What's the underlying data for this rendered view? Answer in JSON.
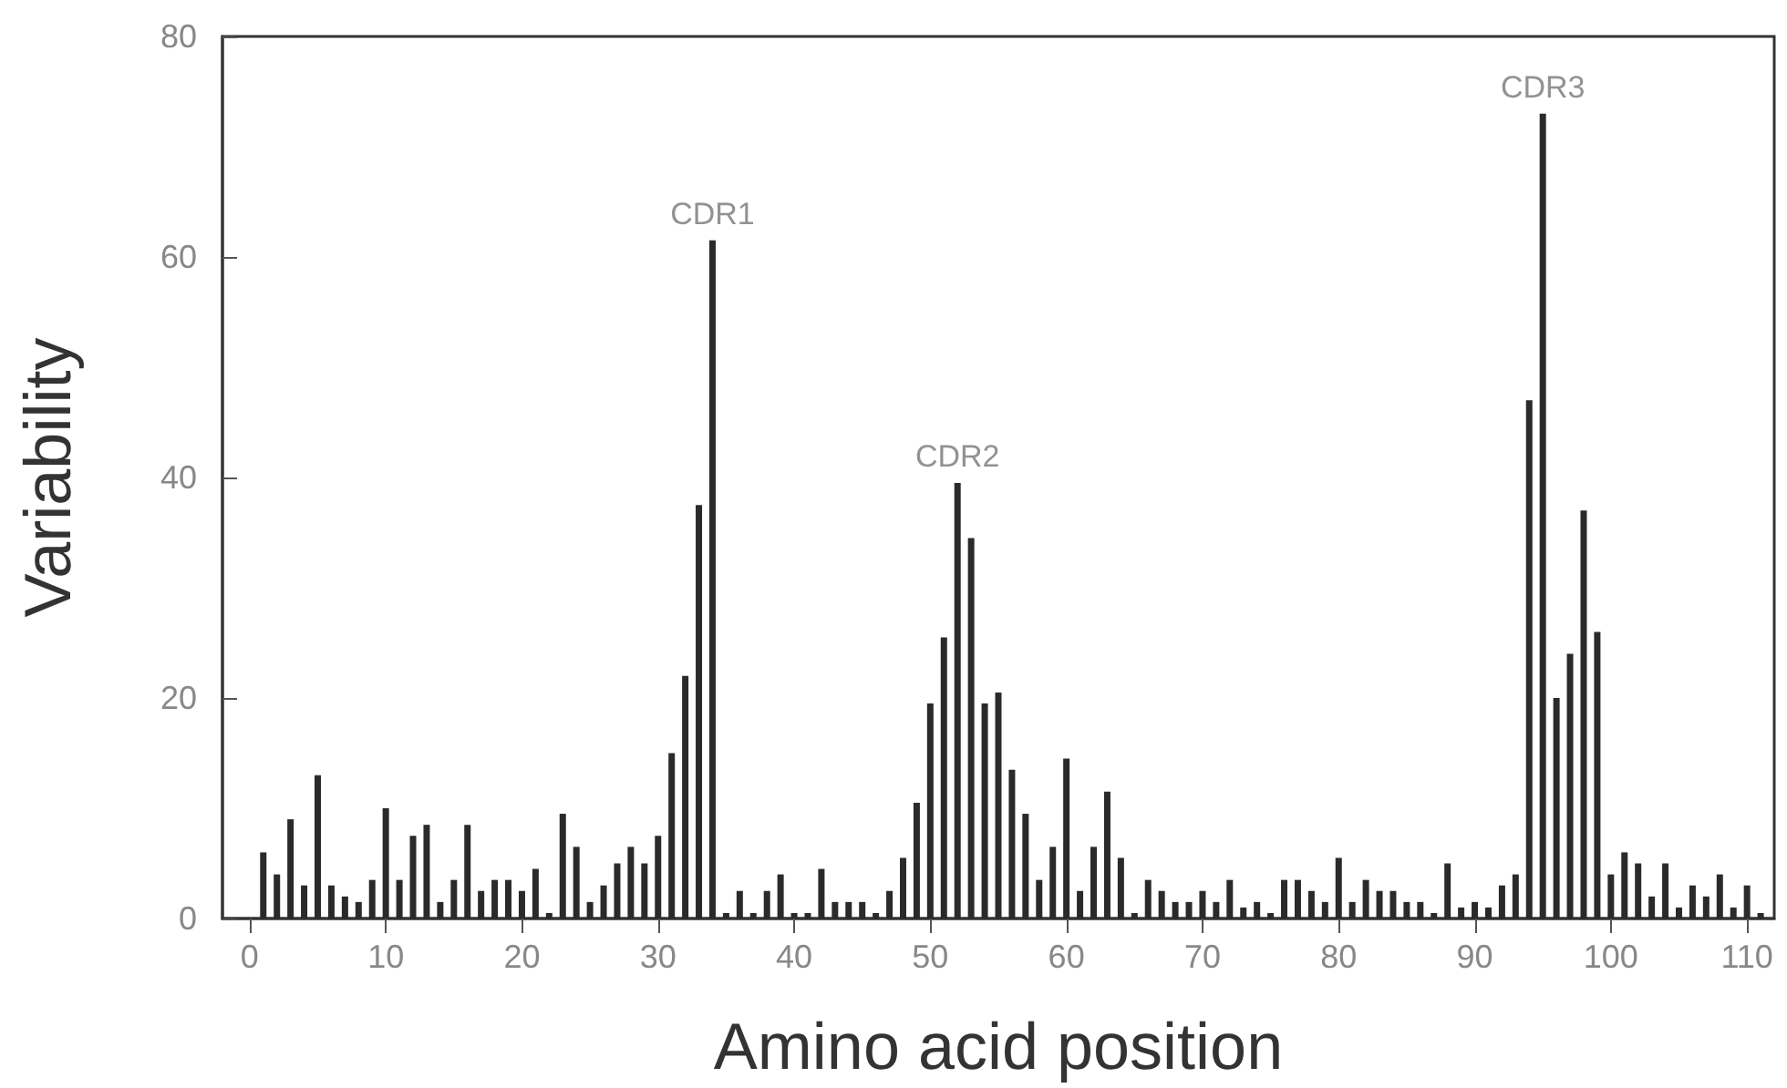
{
  "chart_data": {
    "type": "bar",
    "xlabel": "Amino acid position",
    "ylabel": "Variability",
    "x": [
      1,
      2,
      3,
      4,
      5,
      6,
      7,
      8,
      9,
      10,
      11,
      12,
      13,
      14,
      15,
      16,
      17,
      18,
      19,
      20,
      21,
      22,
      23,
      24,
      25,
      26,
      27,
      28,
      29,
      30,
      31,
      32,
      33,
      34,
      35,
      36,
      37,
      38,
      39,
      40,
      41,
      42,
      43,
      44,
      45,
      46,
      47,
      48,
      49,
      50,
      51,
      52,
      53,
      54,
      55,
      56,
      57,
      58,
      59,
      60,
      61,
      62,
      63,
      64,
      65,
      66,
      67,
      68,
      69,
      70,
      71,
      72,
      73,
      74,
      75,
      76,
      77,
      78,
      79,
      80,
      81,
      82,
      83,
      84,
      85,
      86,
      87,
      88,
      89,
      90,
      91,
      92,
      93,
      94,
      95,
      96,
      97,
      98,
      99,
      100,
      101,
      102,
      103,
      104,
      105,
      106,
      107,
      108,
      109,
      110,
      111
    ],
    "values": [
      6,
      4,
      9,
      3,
      13,
      3,
      2,
      1.5,
      3.5,
      10,
      3.5,
      7.5,
      8.5,
      1.5,
      3.5,
      8.5,
      2.5,
      3.5,
      3.5,
      2.5,
      4.5,
      0.5,
      9.5,
      6.5,
      1.5,
      3,
      5,
      6.5,
      5,
      7.5,
      15,
      22,
      37.5,
      61.5,
      0.5,
      2.5,
      0.5,
      2.5,
      4,
      0.5,
      0.5,
      4.5,
      1.5,
      1.5,
      1.5,
      0.5,
      2.5,
      5.5,
      10.5,
      19.5,
      25.5,
      39.5,
      34.5,
      19.5,
      20.5,
      13.5,
      9.5,
      3.5,
      6.5,
      14.5,
      2.5,
      6.5,
      11.5,
      5.5,
      0.5,
      3.5,
      2.5,
      1.5,
      1.5,
      2.5,
      1.5,
      3.5,
      1,
      1.5,
      0.5,
      3.5,
      3.5,
      2.5,
      1.5,
      5.5,
      1.5,
      3.5,
      2.5,
      2.5,
      1.5,
      1.5,
      0.5,
      5,
      1,
      1.5,
      1,
      3,
      4,
      47,
      73,
      20,
      24,
      37,
      26,
      4,
      6,
      5,
      2,
      5,
      1,
      3,
      2,
      4,
      1,
      3,
      0.5
    ],
    "color": "#2a2a2a",
    "annotations": [
      {
        "text": "CDR1",
        "x": 34,
        "y": 61.5
      },
      {
        "text": "CDR2",
        "x": 52,
        "y": 39.5
      },
      {
        "text": "CDR3",
        "x": 95,
        "y": 73
      }
    ],
    "xlim": [
      -2,
      112
    ],
    "xticks": [
      0,
      10,
      20,
      30,
      40,
      50,
      60,
      70,
      80,
      90,
      100,
      110
    ],
    "ylim": [
      0,
      80
    ],
    "yticks": [
      0,
      20,
      40,
      60,
      80
    ]
  }
}
